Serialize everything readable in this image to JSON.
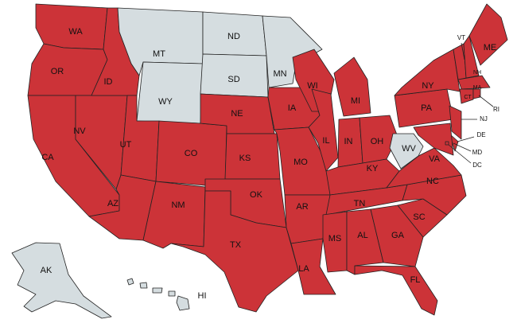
{
  "colors": {
    "highlighted": "#cc3338",
    "other": "#d5dde0",
    "border": "#222222"
  },
  "states": [
    {
      "code": "WA",
      "label": "WA",
      "highlighted": true
    },
    {
      "code": "OR",
      "label": "OR",
      "highlighted": true
    },
    {
      "code": "CA",
      "label": "CA",
      "highlighted": true
    },
    {
      "code": "NV",
      "label": "NV",
      "highlighted": true
    },
    {
      "code": "ID",
      "label": "ID",
      "highlighted": true
    },
    {
      "code": "MT",
      "label": "MT",
      "highlighted": false
    },
    {
      "code": "WY",
      "label": "WY",
      "highlighted": false
    },
    {
      "code": "UT",
      "label": "UT",
      "highlighted": true
    },
    {
      "code": "AZ",
      "label": "AZ",
      "highlighted": true
    },
    {
      "code": "CO",
      "label": "CO",
      "highlighted": true
    },
    {
      "code": "NM",
      "label": "NM",
      "highlighted": true
    },
    {
      "code": "ND",
      "label": "ND",
      "highlighted": false
    },
    {
      "code": "SD",
      "label": "SD",
      "highlighted": false
    },
    {
      "code": "NE",
      "label": "NE",
      "highlighted": true
    },
    {
      "code": "KS",
      "label": "KS",
      "highlighted": true
    },
    {
      "code": "OK",
      "label": "OK",
      "highlighted": true
    },
    {
      "code": "TX",
      "label": "TX",
      "highlighted": true
    },
    {
      "code": "MN",
      "label": "MN",
      "highlighted": false
    },
    {
      "code": "IA",
      "label": "IA",
      "highlighted": true
    },
    {
      "code": "MO",
      "label": "MO",
      "highlighted": true
    },
    {
      "code": "AR",
      "label": "AR",
      "highlighted": true
    },
    {
      "code": "LA",
      "label": "LA",
      "highlighted": true
    },
    {
      "code": "WI",
      "label": "WI",
      "highlighted": true
    },
    {
      "code": "IL",
      "label": "IL",
      "highlighted": true
    },
    {
      "code": "MI",
      "label": "MI",
      "highlighted": true
    },
    {
      "code": "IN",
      "label": "IN",
      "highlighted": true
    },
    {
      "code": "OH",
      "label": "OH",
      "highlighted": true
    },
    {
      "code": "KY",
      "label": "KY",
      "highlighted": true
    },
    {
      "code": "TN",
      "label": "TN",
      "highlighted": true
    },
    {
      "code": "MS",
      "label": "MS",
      "highlighted": true
    },
    {
      "code": "AL",
      "label": "AL",
      "highlighted": true
    },
    {
      "code": "GA",
      "label": "GA",
      "highlighted": true
    },
    {
      "code": "FL",
      "label": "FL",
      "highlighted": true
    },
    {
      "code": "SC",
      "label": "SC",
      "highlighted": true
    },
    {
      "code": "NC",
      "label": "NC",
      "highlighted": true
    },
    {
      "code": "VA",
      "label": "VA",
      "highlighted": true
    },
    {
      "code": "WV",
      "label": "WV",
      "highlighted": false
    },
    {
      "code": "PA",
      "label": "PA",
      "highlighted": true
    },
    {
      "code": "NY",
      "label": "NY",
      "highlighted": true
    },
    {
      "code": "NJ",
      "label": "NJ",
      "highlighted": true
    },
    {
      "code": "DE",
      "label": "DE",
      "highlighted": true
    },
    {
      "code": "MD",
      "label": "MD",
      "highlighted": true
    },
    {
      "code": "DC",
      "label": "DC",
      "highlighted": true
    },
    {
      "code": "VT",
      "label": "VT",
      "highlighted": true
    },
    {
      "code": "NH",
      "label": "NH",
      "highlighted": true
    },
    {
      "code": "ME",
      "label": "ME",
      "highlighted": true
    },
    {
      "code": "MA",
      "label": "MA",
      "highlighted": true
    },
    {
      "code": "CT",
      "label": "CT",
      "highlighted": true
    },
    {
      "code": "RI",
      "label": "RI",
      "highlighted": true
    },
    {
      "code": "AK",
      "label": "AK",
      "highlighted": false
    },
    {
      "code": "HI",
      "label": "HI",
      "highlighted": false
    }
  ]
}
